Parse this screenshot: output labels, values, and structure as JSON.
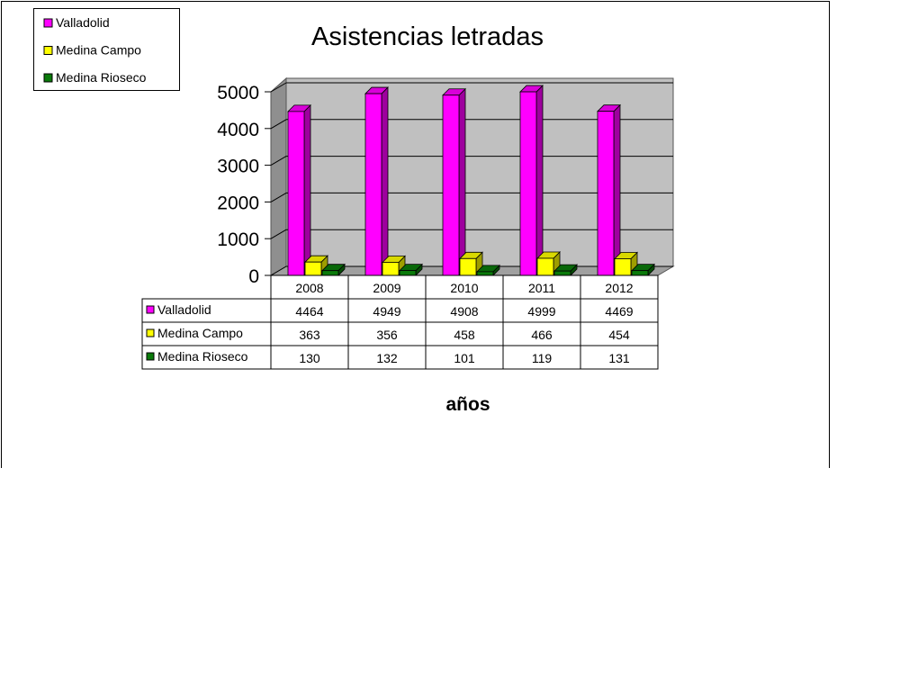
{
  "chart_data": {
    "type": "bar",
    "title": "Asistencias letradas",
    "xlabel": "años",
    "ylabel": "",
    "ylim": [
      0,
      5000
    ],
    "yticks": [
      "0",
      "1000",
      "2000",
      "3000",
      "4000",
      "5000"
    ],
    "categories": [
      "2008",
      "2009",
      "2010",
      "2011",
      "2012"
    ],
    "grid": true,
    "legend_position": "top-left",
    "series": [
      {
        "name": "Valladolid",
        "color": "#ff00ff",
        "values": [
          4464,
          4949,
          4908,
          4999,
          4469
        ]
      },
      {
        "name": "Medina Campo",
        "color": "#ffff00",
        "values": [
          363,
          356,
          458,
          466,
          454
        ]
      },
      {
        "name": "Medina Rioseco",
        "color": "#0a7a0a",
        "values": [
          130,
          132,
          101,
          119,
          131
        ]
      }
    ]
  }
}
